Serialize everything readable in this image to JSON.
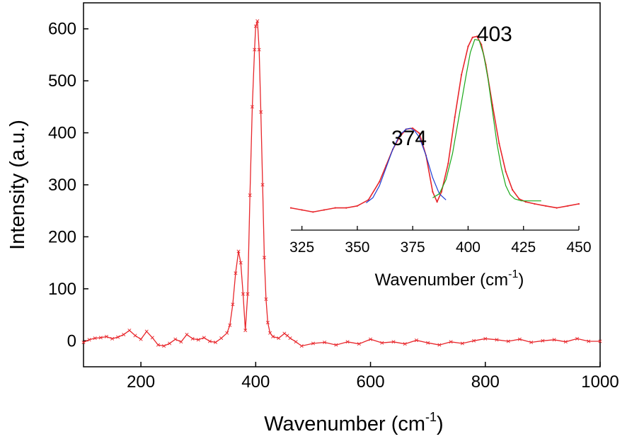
{
  "chart_data": [
    {
      "type": "line",
      "title": "",
      "xlabel": "Wavenumber (cm",
      "xlabel_sup": "-1",
      "xlabel_close": ")",
      "ylabel": "Intensity (a.u.)",
      "xlim": [
        100,
        1000
      ],
      "ylim": [
        -50,
        650
      ],
      "x_ticks": [
        200,
        400,
        600,
        800,
        1000
      ],
      "y_ticks": [
        0,
        100,
        200,
        300,
        400,
        500,
        600
      ],
      "marker": "x",
      "series": [
        {
          "color": "#e8262b",
          "x": [
            100,
            110,
            120,
            130,
            140,
            150,
            160,
            170,
            180,
            190,
            200,
            210,
            220,
            230,
            240,
            250,
            260,
            270,
            280,
            290,
            300,
            310,
            320,
            330,
            340,
            350,
            355,
            360,
            365,
            370,
            374,
            378,
            382,
            386,
            390,
            394,
            398,
            400,
            403,
            406,
            409,
            412,
            415,
            418,
            421,
            425,
            430,
            440,
            450,
            455,
            460,
            470,
            480,
            500,
            520,
            540,
            560,
            580,
            600,
            620,
            640,
            660,
            680,
            700,
            720,
            740,
            760,
            780,
            800,
            820,
            840,
            860,
            880,
            900,
            920,
            940,
            960,
            980,
            1000
          ],
          "y": [
            -3,
            2,
            5,
            6,
            8,
            4,
            7,
            12,
            20,
            10,
            3,
            18,
            6,
            -8,
            -10,
            -5,
            3,
            -2,
            12,
            4,
            2,
            6,
            -1,
            -3,
            5,
            15,
            30,
            70,
            130,
            172,
            150,
            90,
            20,
            90,
            280,
            450,
            560,
            605,
            615,
            560,
            440,
            300,
            160,
            80,
            35,
            15,
            8,
            5,
            14,
            10,
            5,
            -2,
            -10,
            -5,
            -3,
            -8,
            -2,
            -6,
            3,
            -4,
            -2,
            -6,
            1,
            -4,
            -8,
            -2,
            -5,
            0,
            4,
            2,
            -1,
            3,
            -3,
            0,
            2,
            -2,
            4,
            -1,
            -1
          ]
        }
      ],
      "annotations": []
    },
    {
      "type": "line",
      "title": "",
      "xlabel": "Wavenumber  (cm",
      "xlabel_sup": "-1",
      "xlabel_close": ")",
      "ylabel": "",
      "xlim": [
        320,
        450
      ],
      "ylim": [
        0,
        1
      ],
      "x_ticks": [
        325,
        350,
        375,
        400,
        425,
        450
      ],
      "y_ticks": [],
      "series": [
        {
          "color": "#e8262b",
          "style": "line-dots",
          "x": [
            320,
            325,
            330,
            335,
            340,
            345,
            350,
            355,
            360,
            363,
            366,
            369,
            372,
            375,
            378,
            381,
            384,
            386,
            388,
            391,
            394,
            397,
            400,
            402,
            404,
            406,
            408,
            411,
            414,
            417,
            420,
            423,
            426,
            430,
            435,
            440,
            445,
            450
          ],
          "y": [
            0.11,
            0.1,
            0.09,
            0.1,
            0.11,
            0.11,
            0.12,
            0.15,
            0.24,
            0.32,
            0.4,
            0.46,
            0.5,
            0.505,
            0.48,
            0.37,
            0.19,
            0.14,
            0.19,
            0.33,
            0.56,
            0.77,
            0.91,
            0.955,
            0.96,
            0.92,
            0.82,
            0.62,
            0.43,
            0.29,
            0.2,
            0.155,
            0.14,
            0.13,
            0.12,
            0.11,
            0.12,
            0.13
          ]
        },
        {
          "color": "#1f3fd4",
          "style": "line",
          "x": [
            354,
            357,
            360,
            363,
            366,
            369,
            372,
            374,
            376,
            378,
            381,
            384,
            387,
            390
          ],
          "y": [
            0.135,
            0.16,
            0.22,
            0.31,
            0.4,
            0.47,
            0.5,
            0.505,
            0.49,
            0.46,
            0.37,
            0.26,
            0.18,
            0.15
          ]
        },
        {
          "color": "#1aa81a",
          "style": "line",
          "x": [
            384,
            387,
            390,
            393,
            396,
            399,
            401,
            403,
            405,
            407,
            409,
            411,
            413,
            415,
            417,
            419,
            421,
            424,
            427,
            430,
            433
          ],
          "y": [
            0.16,
            0.18,
            0.25,
            0.38,
            0.57,
            0.76,
            0.88,
            0.945,
            0.94,
            0.87,
            0.75,
            0.59,
            0.43,
            0.31,
            0.22,
            0.175,
            0.155,
            0.145,
            0.145,
            0.145,
            0.145
          ]
        }
      ],
      "annotations": [
        {
          "text": "374",
          "x": 374
        },
        {
          "text": "403",
          "x": 403
        }
      ]
    }
  ]
}
